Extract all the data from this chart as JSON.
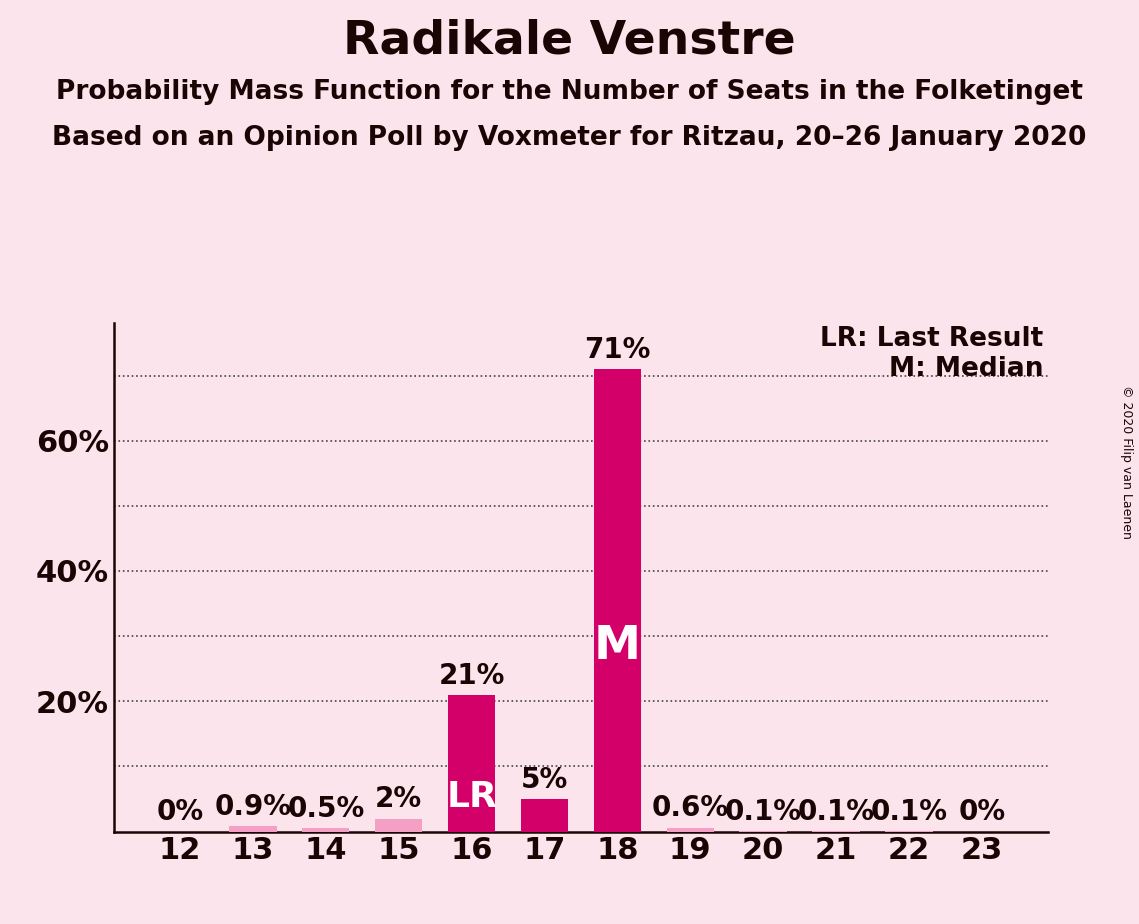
{
  "title": "Radikale Venstre",
  "subtitle1": "Probability Mass Function for the Number of Seats in the Folketinget",
  "subtitle2": "Based on an Opinion Poll by Voxmeter for Ritzau, 20–26 January 2020",
  "copyright": "© 2020 Filip van Laenen",
  "categories": [
    12,
    13,
    14,
    15,
    16,
    17,
    18,
    19,
    20,
    21,
    22,
    23
  ],
  "values": [
    0.0,
    0.9,
    0.5,
    2.0,
    21.0,
    5.0,
    71.0,
    0.6,
    0.1,
    0.1,
    0.1,
    0.0
  ],
  "bar_labels": [
    "0%",
    "0.9%",
    "0.5%",
    "2%",
    "21%",
    "5%",
    "71%",
    "0.6%",
    "0.1%",
    "0.1%",
    "0.1%",
    "0%"
  ],
  "last_result_idx": 4,
  "median_idx": 6,
  "bar_color_normal": "#d4006a",
  "bar_color_light": "#f4a0c4",
  "background_color": "#fce4ec",
  "text_color": "#1a0505",
  "legend_lr": "LR: Last Result",
  "legend_m": "M: Median",
  "ytick_labels": [
    "20%",
    "40%",
    "60%"
  ],
  "ytick_values": [
    20,
    40,
    60
  ],
  "ygrid_values": [
    10,
    20,
    30,
    40,
    50,
    60,
    70
  ],
  "ylim": [
    0,
    78
  ],
  "tick_fontsize": 22,
  "title_fontsize": 34,
  "subtitle_fontsize": 19,
  "bar_label_fontsize": 20,
  "legend_fontsize": 19,
  "copyright_fontsize": 9
}
